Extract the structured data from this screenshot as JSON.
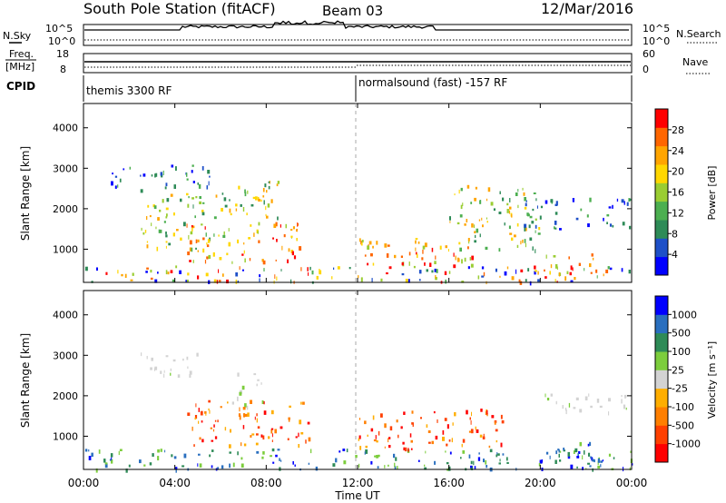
{
  "header": {
    "station": "South Pole Station (fitACF)",
    "beam": "Beam 03",
    "date": "12/Mar/2016"
  },
  "strip_panels": {
    "nsky_label": "N.Sky",
    "nsky_ticks": [
      "10^5",
      "10^0"
    ],
    "nsearch_label": "N.Search",
    "nsearch_ticks": [
      "10^5",
      "10^0"
    ],
    "freq_label_1": "Freq.",
    "freq_label_2": "[MHz]",
    "freq_ticks": [
      "18",
      "8"
    ],
    "nave_label": "Nave",
    "nave_ticks": [
      "60",
      "0"
    ],
    "cpid_label": "CPID",
    "cpid_segments": [
      "themis 3300 RF",
      "normalsound (fast) -157 RF"
    ]
  },
  "chart_data": [
    {
      "type": "heatmap",
      "name": "power",
      "ylabel": "Slant Range [km]",
      "yticks": [
        "4000",
        "3000",
        "2000",
        "1000"
      ],
      "ylim": [
        180,
        4600
      ],
      "xlim": [
        0,
        24
      ],
      "colorbar": {
        "label": "Power [dB]",
        "ticks": [
          "28",
          "24",
          "20",
          "16",
          "12",
          "8",
          "4"
        ],
        "colors": [
          "#0000ff",
          "#1e50c8",
          "#2e8b57",
          "#4caf50",
          "#9acd32",
          "#ffd700",
          "#ffa500",
          "#ff6600",
          "#ff0000"
        ]
      },
      "regions": [
        {
          "t0": 1.0,
          "t1": 5.5,
          "r0": 2400,
          "r1": 3100,
          "level": "low"
        },
        {
          "t0": 2.5,
          "t1": 6.5,
          "r0": 1000,
          "r1": 2400,
          "level": "mid"
        },
        {
          "t0": 4.5,
          "t1": 9.5,
          "r0": 700,
          "r1": 1700,
          "level": "high"
        },
        {
          "t0": 6.5,
          "t1": 8.5,
          "r0": 1800,
          "r1": 2900,
          "level": "mid"
        },
        {
          "t0": 0.0,
          "t1": 24.0,
          "r0": 200,
          "r1": 600,
          "level": "mixed"
        },
        {
          "t0": 12.0,
          "t1": 17.0,
          "r0": 600,
          "r1": 1300,
          "level": "high"
        },
        {
          "t0": 16.0,
          "t1": 20.0,
          "r0": 1000,
          "r1": 2600,
          "level": "mid"
        },
        {
          "t0": 19.0,
          "t1": 24.0,
          "r0": 1500,
          "r1": 2300,
          "level": "low"
        },
        {
          "t0": 19.5,
          "t1": 22.5,
          "r0": 300,
          "r1": 900,
          "level": "high"
        }
      ]
    },
    {
      "type": "heatmap",
      "name": "velocity",
      "ylabel": "Slant Range [km]",
      "yticks": [
        "4000",
        "3000",
        "2000",
        "1000"
      ],
      "ylim": [
        180,
        4600
      ],
      "xlim": [
        0,
        24
      ],
      "xlabel": "Time UT",
      "xticks": [
        "00:00",
        "04:00",
        "08:00",
        "12:00",
        "16:00",
        "20:00",
        "00:00"
      ],
      "colorbar": {
        "label": "Velocity [m s⁻¹]",
        "ticks": [
          "1000",
          "500",
          "100",
          "25",
          "-25",
          "-100",
          "-500",
          "-1000"
        ],
        "colors": [
          "#ff0000",
          "#ff4000",
          "#ff7f00",
          "#ffae00",
          "#d3d3d3",
          "#7ccd3c",
          "#2e8b57",
          "#2a6fbf",
          "#0000ff"
        ]
      },
      "regions": [
        {
          "t0": 2.5,
          "t1": 5.0,
          "r0": 2500,
          "r1": 3100,
          "level": "ground"
        },
        {
          "t0": 6.5,
          "t1": 8.0,
          "r0": 1700,
          "r1": 2600,
          "level": "ground"
        },
        {
          "t0": 4.5,
          "t1": 10.0,
          "r0": 800,
          "r1": 1900,
          "level": "neg"
        },
        {
          "t0": 0.0,
          "t1": 24.0,
          "r0": 200,
          "r1": 700,
          "level": "pos"
        },
        {
          "t0": 12.0,
          "t1": 18.5,
          "r0": 700,
          "r1": 1700,
          "level": "neg"
        },
        {
          "t0": 20.0,
          "t1": 23.8,
          "r0": 1600,
          "r1": 2100,
          "level": "ground"
        },
        {
          "t0": 20.5,
          "t1": 23.0,
          "r0": 400,
          "r1": 900,
          "level": "pos"
        }
      ]
    }
  ]
}
